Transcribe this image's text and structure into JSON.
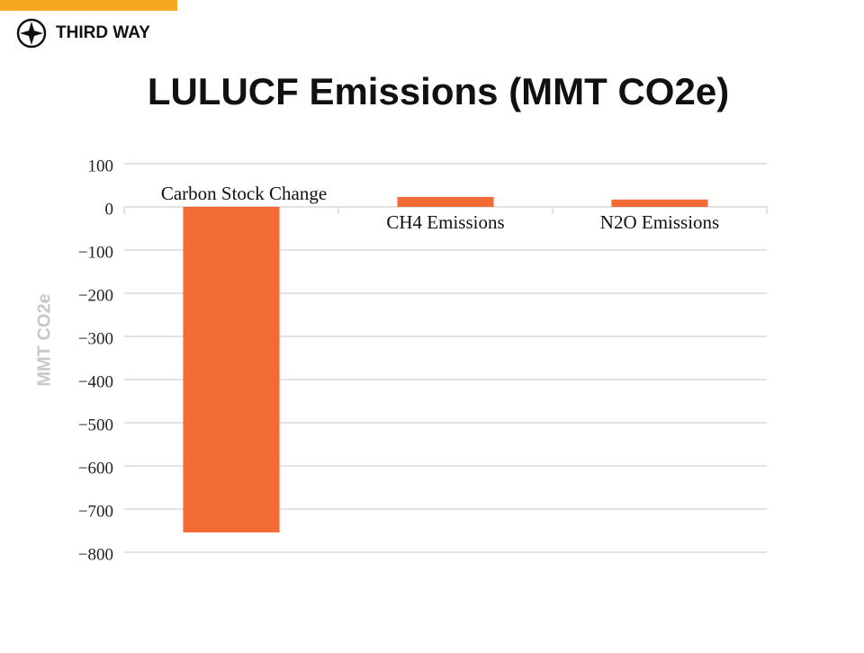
{
  "brand": "THIRD WAY",
  "chart_data": {
    "type": "bar",
    "title": "LULUCF Emissions (MMT CO2e)",
    "y_label": "MMT CO2e",
    "categories": [
      "Carbon Stock Change",
      "CH4 Emissions",
      "N2O Emissions"
    ],
    "values": [
      -754,
      23,
      17
    ],
    "color": "#f26a35",
    "ylim": [
      -800,
      100
    ],
    "yticks": [
      100,
      0,
      {
        "value": -100,
        "label": "−100"
      },
      {
        "value": -200,
        "label": "−200"
      },
      {
        "value": -300,
        "label": "−300"
      },
      {
        "value": -400,
        "label": "−400"
      },
      {
        "value": -500,
        "label": "−500"
      },
      {
        "value": -600,
        "label": "−600"
      },
      {
        "value": -700,
        "label": "−700"
      },
      {
        "value": -800,
        "label": "−800"
      }
    ],
    "grid": true
  }
}
